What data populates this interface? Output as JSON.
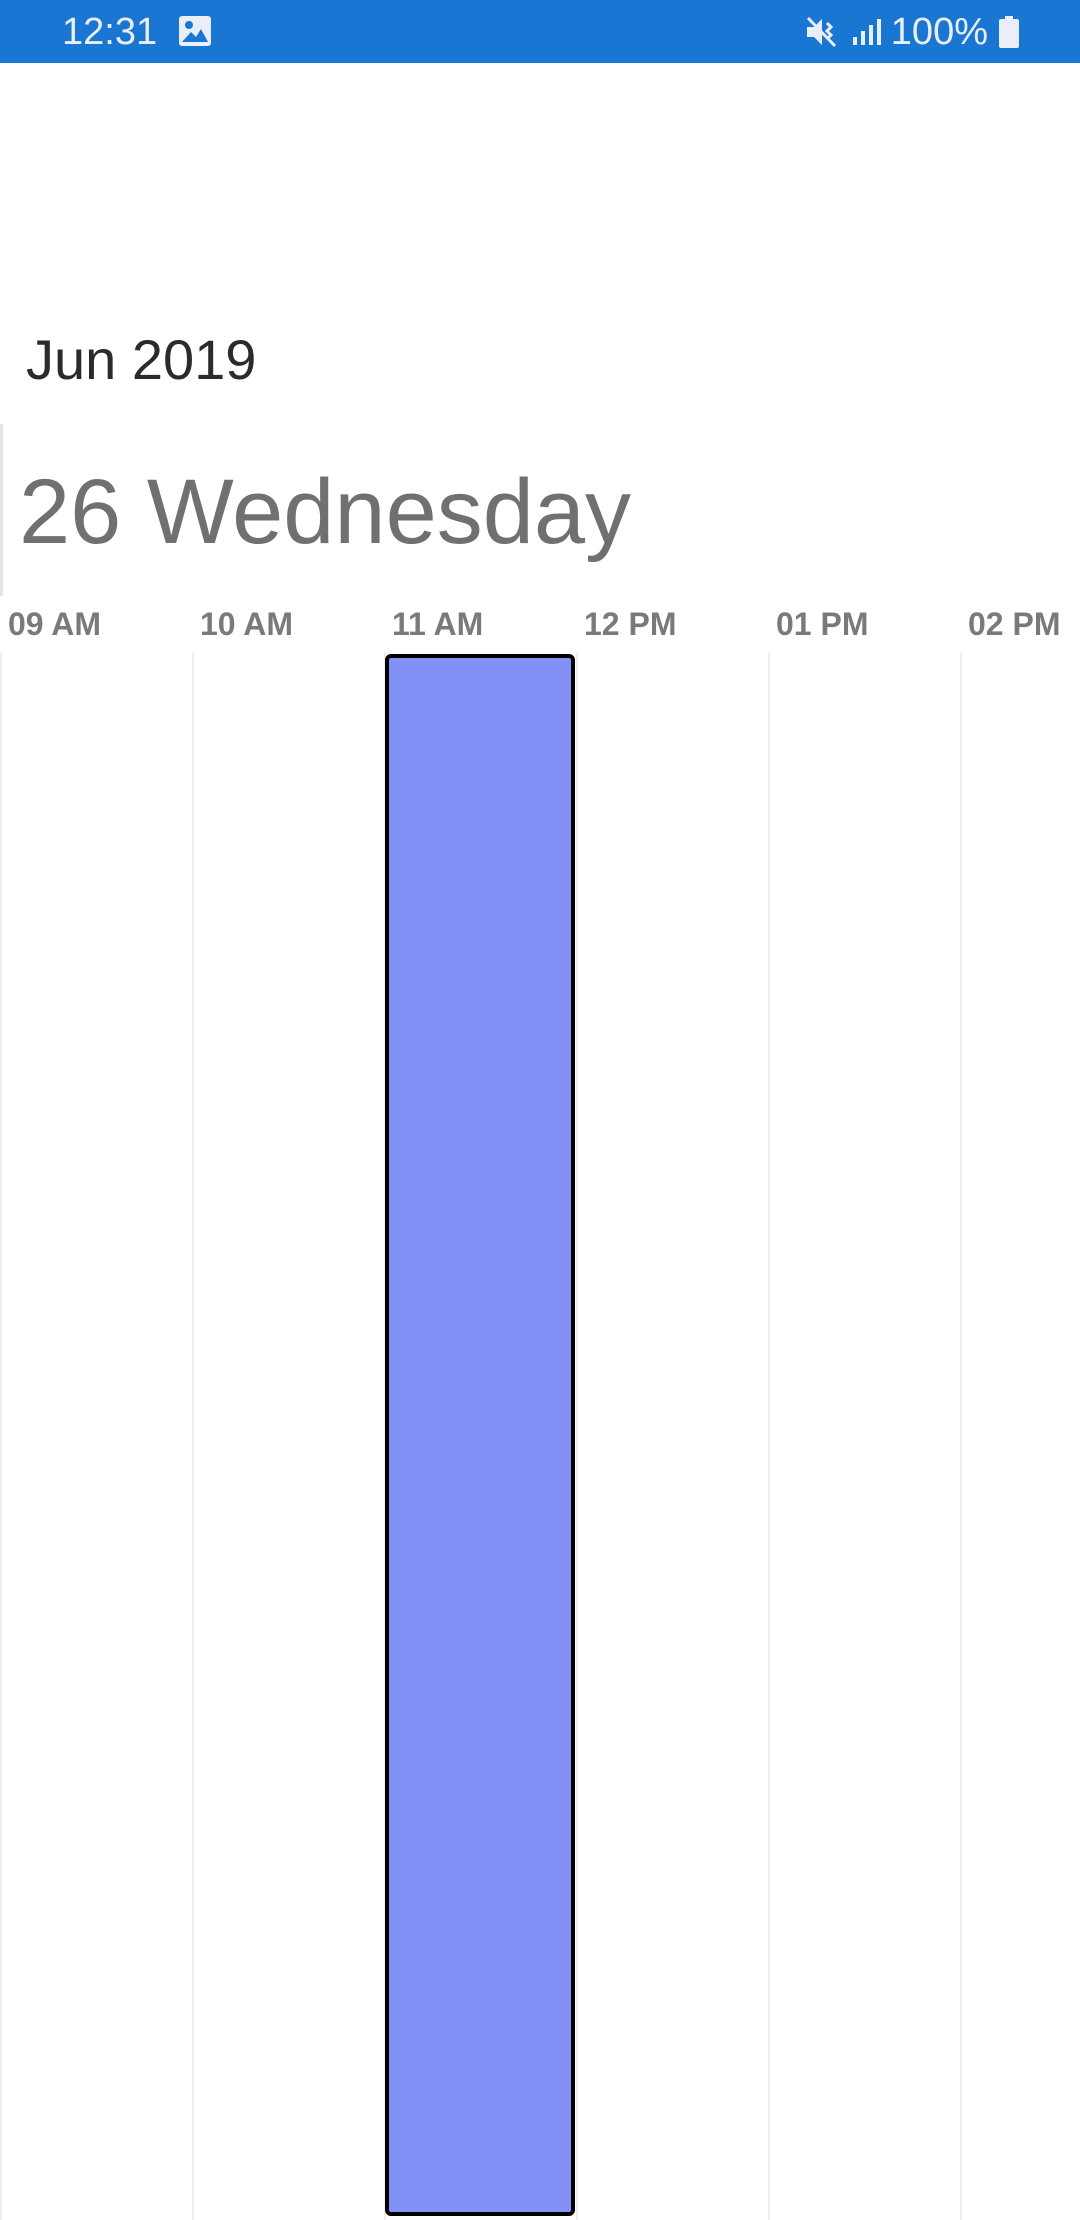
{
  "status_bar": {
    "time": "12:31",
    "battery": "100%",
    "icons": [
      "image-icon",
      "mute-vibrate-icon",
      "signal-icon",
      "battery-icon"
    ],
    "background_color": "#1976d2"
  },
  "calendar": {
    "month_year": "Jun 2019",
    "day_label": "26 Wednesday",
    "time_slots": [
      "09 AM",
      "10 AM",
      "11 AM",
      "12 PM",
      "01 PM",
      "02 PM"
    ],
    "appointment": {
      "start": "11 AM",
      "end": "12 PM",
      "color": "#8391f7"
    }
  }
}
